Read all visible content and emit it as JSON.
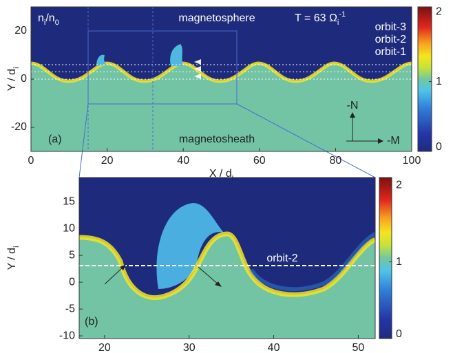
{
  "chart_data": [
    {
      "type": "heatmap",
      "panel_label": "(a)",
      "xlabel": [
        {
          "text": "X / d"
        },
        {
          "sub": "i"
        }
      ],
      "ylabel": [
        {
          "text": "Y / d"
        },
        {
          "sub": "i"
        }
      ],
      "xlim": [
        0,
        100
      ],
      "xticks": [
        0,
        20,
        40,
        60,
        80,
        100
      ],
      "ylim": [
        -30,
        30
      ],
      "yticks": [
        -20,
        0,
        20
      ],
      "colorbar": {
        "lim": [
          0,
          2.07
        ],
        "ticks": [
          0,
          1,
          2
        ]
      },
      "quantity": [
        {
          "text": "n"
        },
        {
          "sub": "i"
        },
        {
          "text": "/n"
        },
        {
          "sub": "0"
        }
      ],
      "time": [
        {
          "text": "T = 63 Ω"
        },
        {
          "sub": "i"
        },
        {
          "sup": "-1"
        }
      ],
      "annotations": [
        "magnetosphere",
        "magnetosheath",
        "orbit-3",
        "orbit-2",
        "orbit-1"
      ],
      "compass": [
        "-N",
        "-M"
      ]
    },
    {
      "type": "heatmap",
      "panel_label": "(b)",
      "xlabel": [
        {
          "text": "X / d"
        },
        {
          "sub": "i"
        }
      ],
      "ylabel": [
        {
          "text": "Y / d"
        },
        {
          "sub": "i"
        }
      ],
      "xlim": [
        17,
        52
      ],
      "xticks": [
        20,
        30,
        40,
        50
      ],
      "ylim": [
        -10.5,
        19.5
      ],
      "yticks": [
        -10,
        -5,
        0,
        5,
        10,
        15
      ],
      "colorbar": {
        "lim": [
          0,
          2.1
        ],
        "ticks": [
          0,
          1,
          2
        ]
      },
      "annotations": [
        "orbit-2"
      ]
    }
  ]
}
